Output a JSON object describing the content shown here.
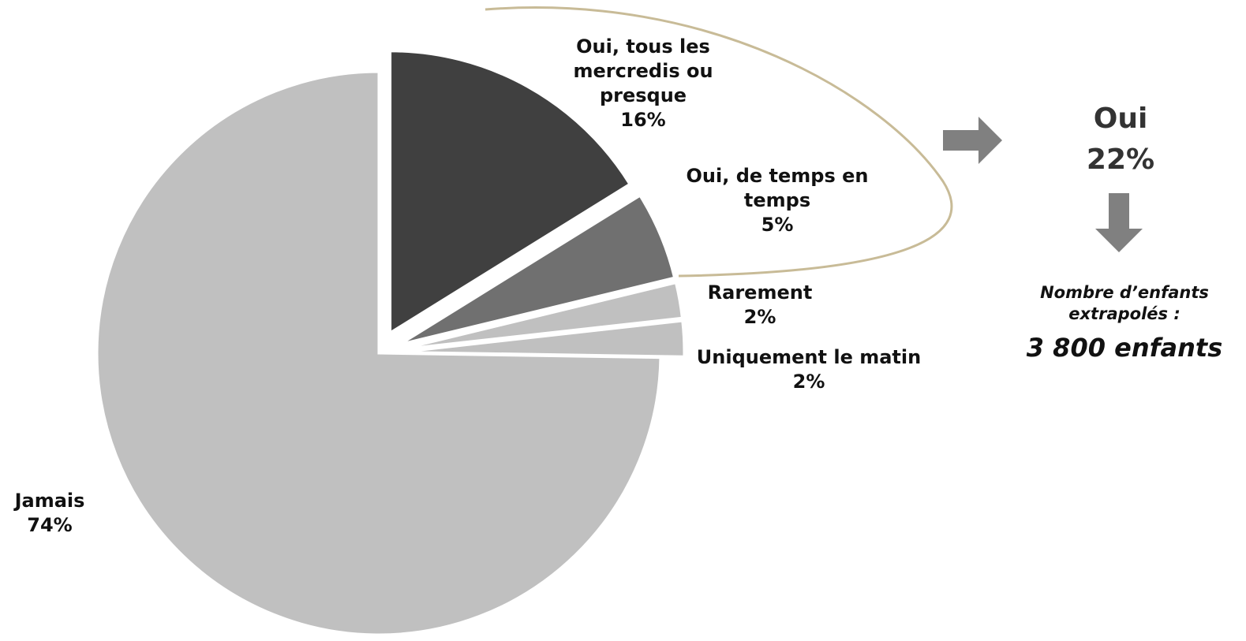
{
  "chart_data": {
    "type": "pie",
    "categories": [
      "Oui, tous les mercredis ou presque",
      "Oui, de temps en temps",
      "Rarement",
      "Uniquement le matin",
      "Jamais"
    ],
    "values": [
      16,
      5,
      2,
      2,
      74
    ],
    "value_labels": [
      "16%",
      "5%",
      "2%",
      "2%",
      "74%"
    ],
    "colors": [
      "#404040",
      "#707070",
      "#c0c0c0",
      "#c0c0c0",
      "#c0c0c0"
    ],
    "annotations": {
      "group_label": "Oui",
      "group_value": "22%",
      "note": "Nombre d’enfants extrapolés :",
      "count": "3 800 enfants"
    }
  }
}
